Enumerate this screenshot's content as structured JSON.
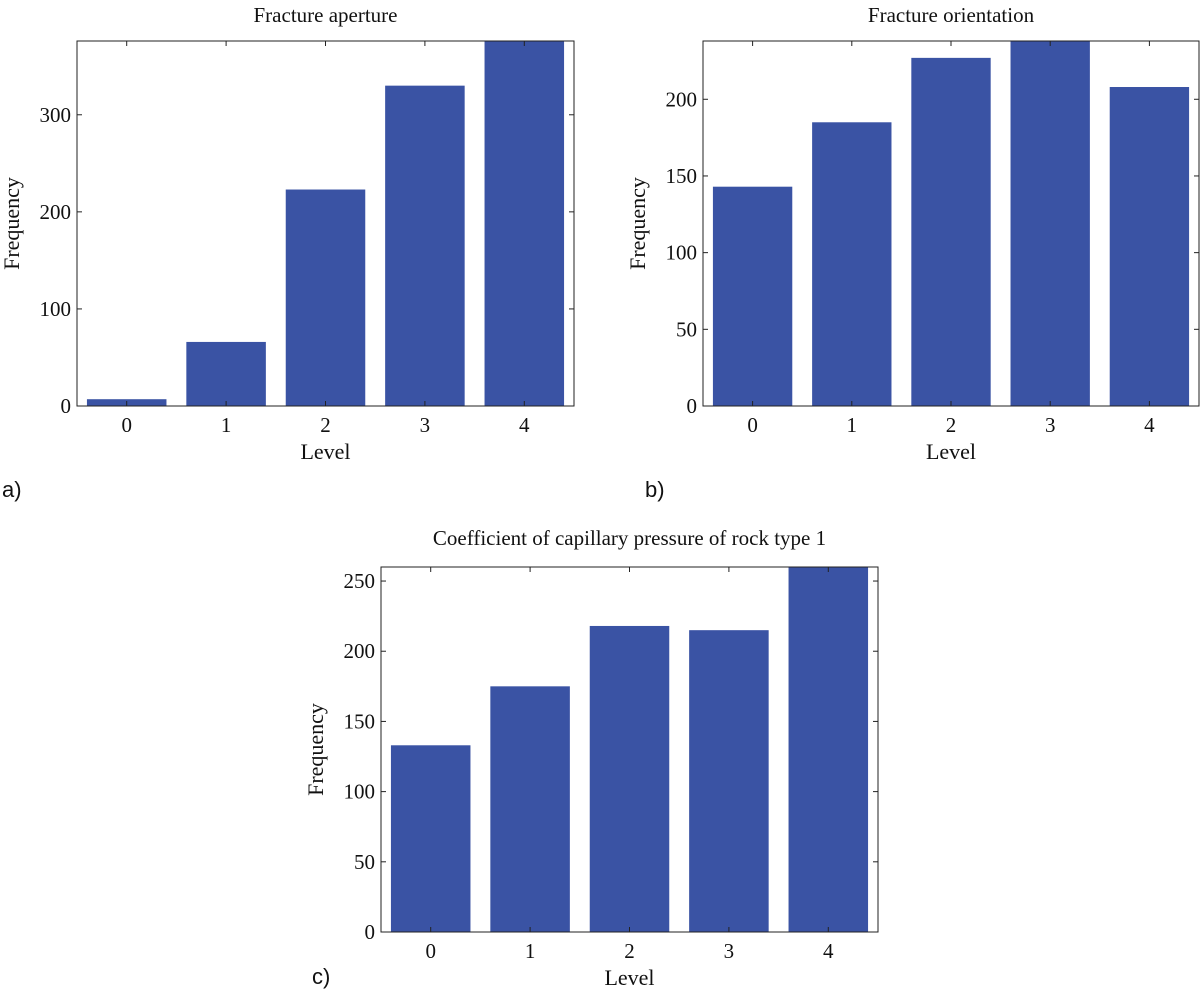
{
  "chart_data": [
    {
      "type": "bar",
      "panel_label": "a)",
      "title": "Fracture aperture",
      "xlabel": "Level",
      "ylabel": "Frequency",
      "categories": [
        "0",
        "1",
        "2",
        "3",
        "4"
      ],
      "values": [
        7,
        66,
        223,
        330,
        376
      ],
      "ylim": [
        0,
        376
      ],
      "yticks": [
        0,
        100,
        200,
        300
      ],
      "color": "#3a53a4",
      "grid": false
    },
    {
      "type": "bar",
      "panel_label": "b)",
      "title": "Fracture orientation",
      "xlabel": "Level",
      "ylabel": "Frequency",
      "categories": [
        "0",
        "1",
        "2",
        "3",
        "4"
      ],
      "values": [
        143,
        185,
        227,
        238,
        208
      ],
      "ylim": [
        0,
        238
      ],
      "yticks": [
        0,
        50,
        100,
        150,
        200
      ],
      "color": "#3a53a4",
      "grid": false
    },
    {
      "type": "bar",
      "panel_label": "c)",
      "title": "Coefficient of capillary pressure of rock type 1",
      "xlabel": "Level",
      "ylabel": "Frequency",
      "categories": [
        "0",
        "1",
        "2",
        "3",
        "4"
      ],
      "values": [
        133,
        175,
        218,
        215,
        260
      ],
      "ylim": [
        0,
        260
      ],
      "yticks": [
        0,
        50,
        100,
        150,
        200,
        250
      ],
      "color": "#3a53a4",
      "grid": false
    }
  ]
}
